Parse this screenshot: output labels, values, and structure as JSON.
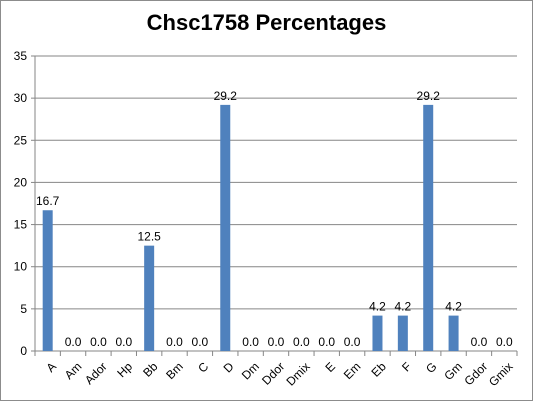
{
  "chart_data": {
    "type": "bar",
    "title": "Chsc1758 Percentages",
    "categories": [
      "A",
      "Am",
      "Ador",
      "Hp",
      "Bb",
      "Bm",
      "C",
      "D",
      "Dm",
      "Ddor",
      "Dmix",
      "E",
      "Em",
      "Eb",
      "F",
      "G",
      "Gm",
      "Gdor",
      "Gmix"
    ],
    "values": [
      16.7,
      0.0,
      0.0,
      0.0,
      12.5,
      0.0,
      0.0,
      29.2,
      0.0,
      0.0,
      0.0,
      0.0,
      0.0,
      4.2,
      4.2,
      29.2,
      4.2,
      0.0,
      0.0
    ],
    "data_labels": [
      "16.7",
      "0.0",
      "0.0",
      "0.0",
      "12.5",
      "0.0",
      "0.0",
      "29.2",
      "0.0",
      "0.0",
      "0.0",
      "0.0",
      "0.0",
      "4.2",
      "4.2",
      "29.2",
      "4.2",
      "0.0",
      "0.0"
    ],
    "ylim": [
      0,
      35
    ],
    "yticks": [
      "0",
      "5",
      "10",
      "15",
      "20",
      "25",
      "30",
      "35"
    ],
    "grid": true,
    "legend": "none",
    "colors": {
      "bar": "#4f81bd",
      "grid": "#868686",
      "axis": "#868686"
    }
  }
}
